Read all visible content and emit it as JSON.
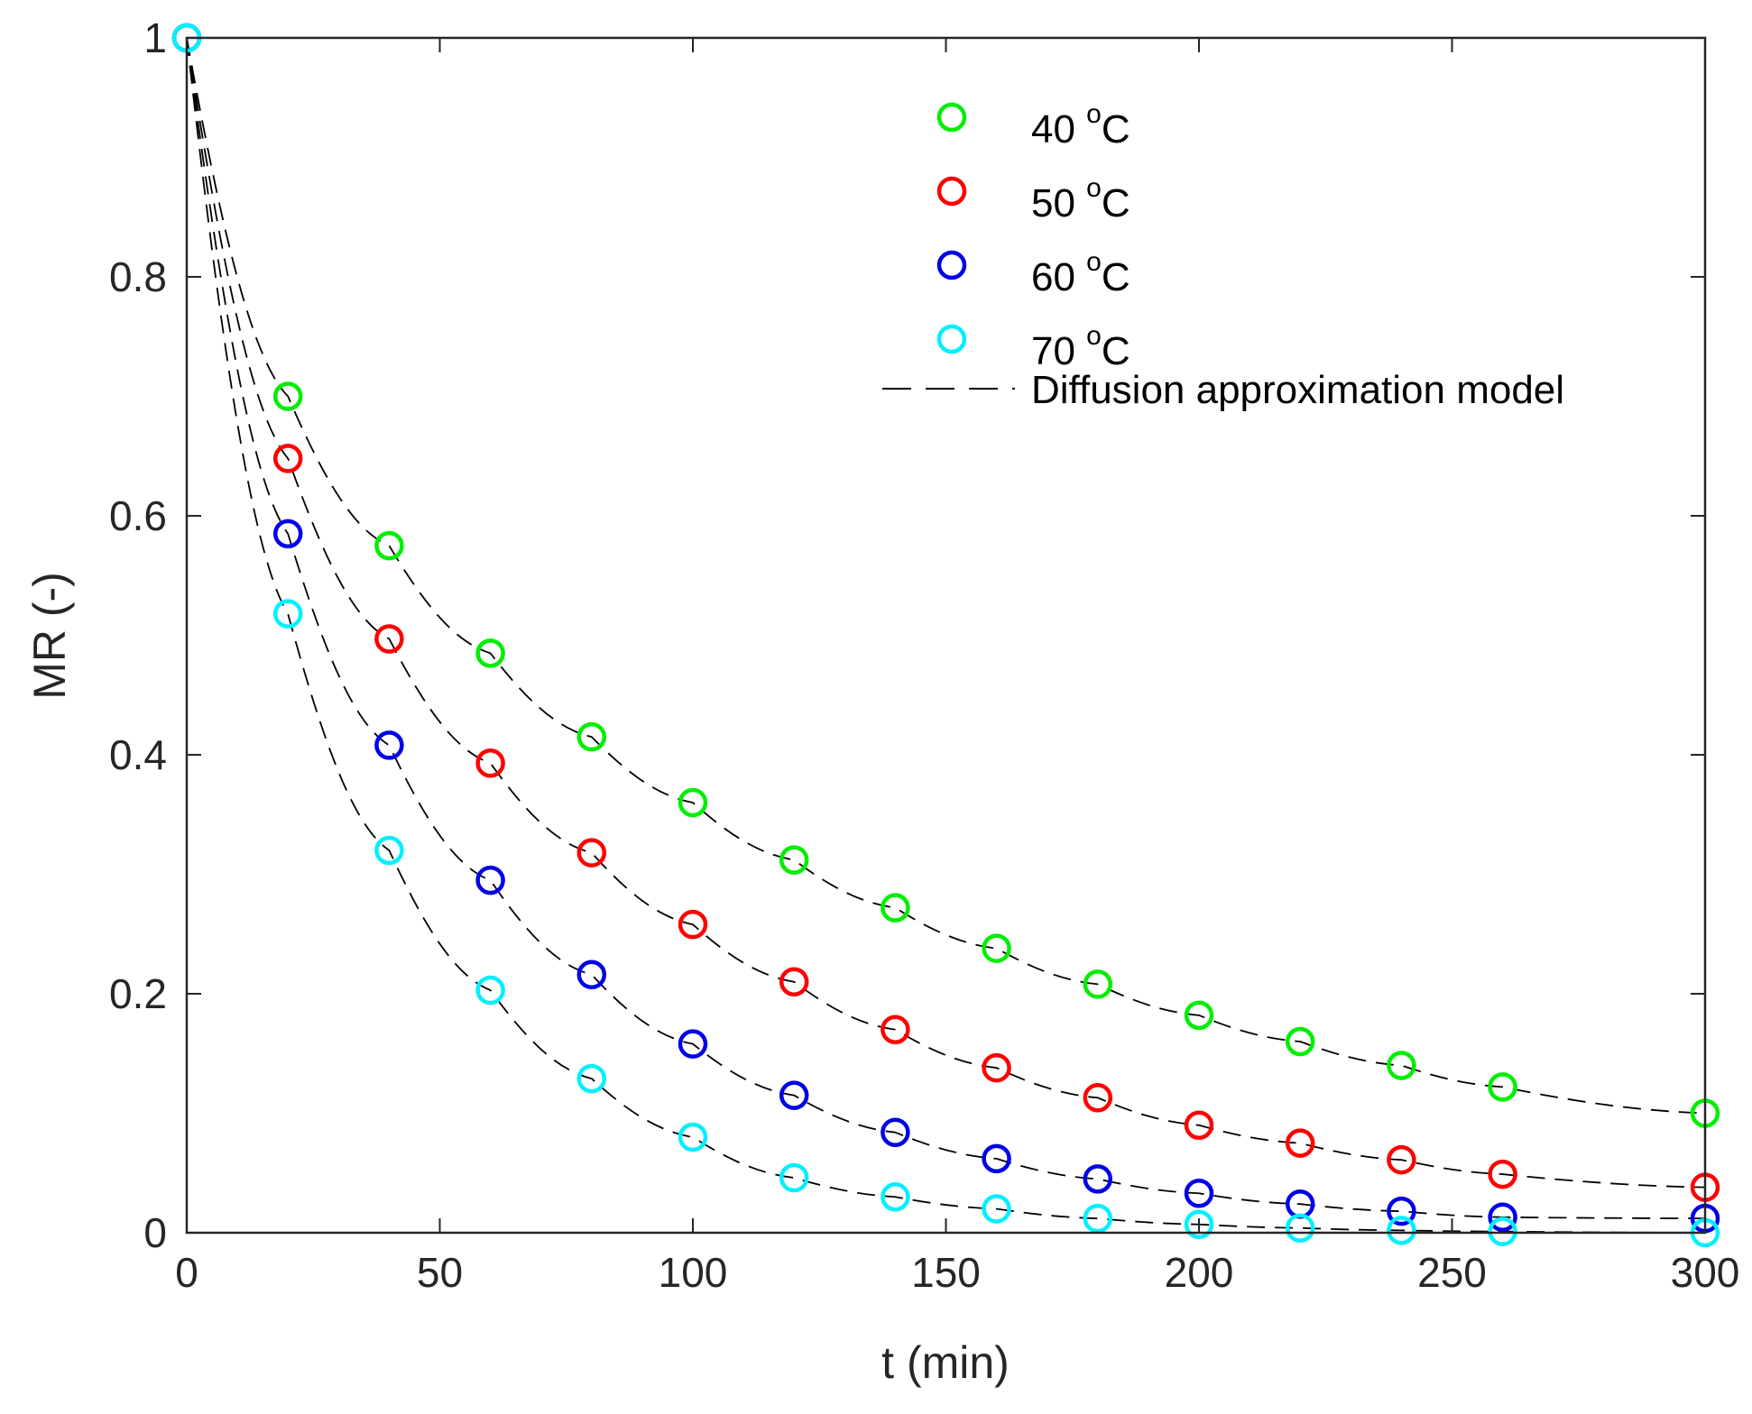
{
  "chart_data": {
    "type": "scatter",
    "title": "",
    "xlabel": "t (min)",
    "ylabel": "MR (-)",
    "xlim": [
      0,
      300
    ],
    "ylim": [
      0,
      1
    ],
    "xticks": [
      0,
      50,
      100,
      150,
      200,
      250,
      300
    ],
    "yticks": [
      0,
      0.2,
      0.4,
      0.6,
      0.8,
      1
    ],
    "xtick_labels": [
      "0",
      "50",
      "100",
      "150",
      "200",
      "250",
      "300"
    ],
    "ytick_labels": [
      "0",
      "0.2",
      "0.4",
      "0.6",
      "0.8",
      "1"
    ],
    "grid": false,
    "legend_position": "top-right",
    "x": [
      0,
      20,
      40,
      60,
      80,
      100,
      120,
      140,
      160,
      180,
      200,
      220,
      240,
      260,
      300
    ],
    "series": [
      {
        "name": "40",
        "unit": "°C",
        "unit_sup": "o",
        "unit_letter": "C",
        "color": "#00ee00",
        "values": [
          1.0,
          0.7,
          0.575,
          0.485,
          0.415,
          0.36,
          0.312,
          0.272,
          0.238,
          0.208,
          0.182,
          0.16,
          0.14,
          0.122,
          0.1
        ]
      },
      {
        "name": "50",
        "unit": "°C",
        "unit_sup": "o",
        "unit_letter": "C",
        "color": "#ff0000",
        "values": [
          1.0,
          0.648,
          0.497,
          0.393,
          0.318,
          0.258,
          0.21,
          0.17,
          0.138,
          0.113,
          0.09,
          0.075,
          0.061,
          0.049,
          0.038
        ]
      },
      {
        "name": "60",
        "unit": "°C",
        "unit_sup": "o",
        "unit_letter": "C",
        "color": "#0000e6",
        "values": [
          1.0,
          0.585,
          0.408,
          0.295,
          0.216,
          0.158,
          0.115,
          0.084,
          0.062,
          0.045,
          0.033,
          0.024,
          0.018,
          0.013,
          0.012
        ]
      },
      {
        "name": "70",
        "unit": "°C",
        "unit_sup": "o",
        "unit_letter": "C",
        "color": "#00f0ff",
        "values": [
          1.0,
          0.518,
          0.32,
          0.203,
          0.129,
          0.08,
          0.046,
          0.03,
          0.02,
          0.012,
          0.007,
          0.004,
          0.002,
          0.001,
          0.0
        ]
      }
    ],
    "model": {
      "name": "Diffusion approximation model",
      "style": "dashed",
      "color": "#000000"
    }
  }
}
